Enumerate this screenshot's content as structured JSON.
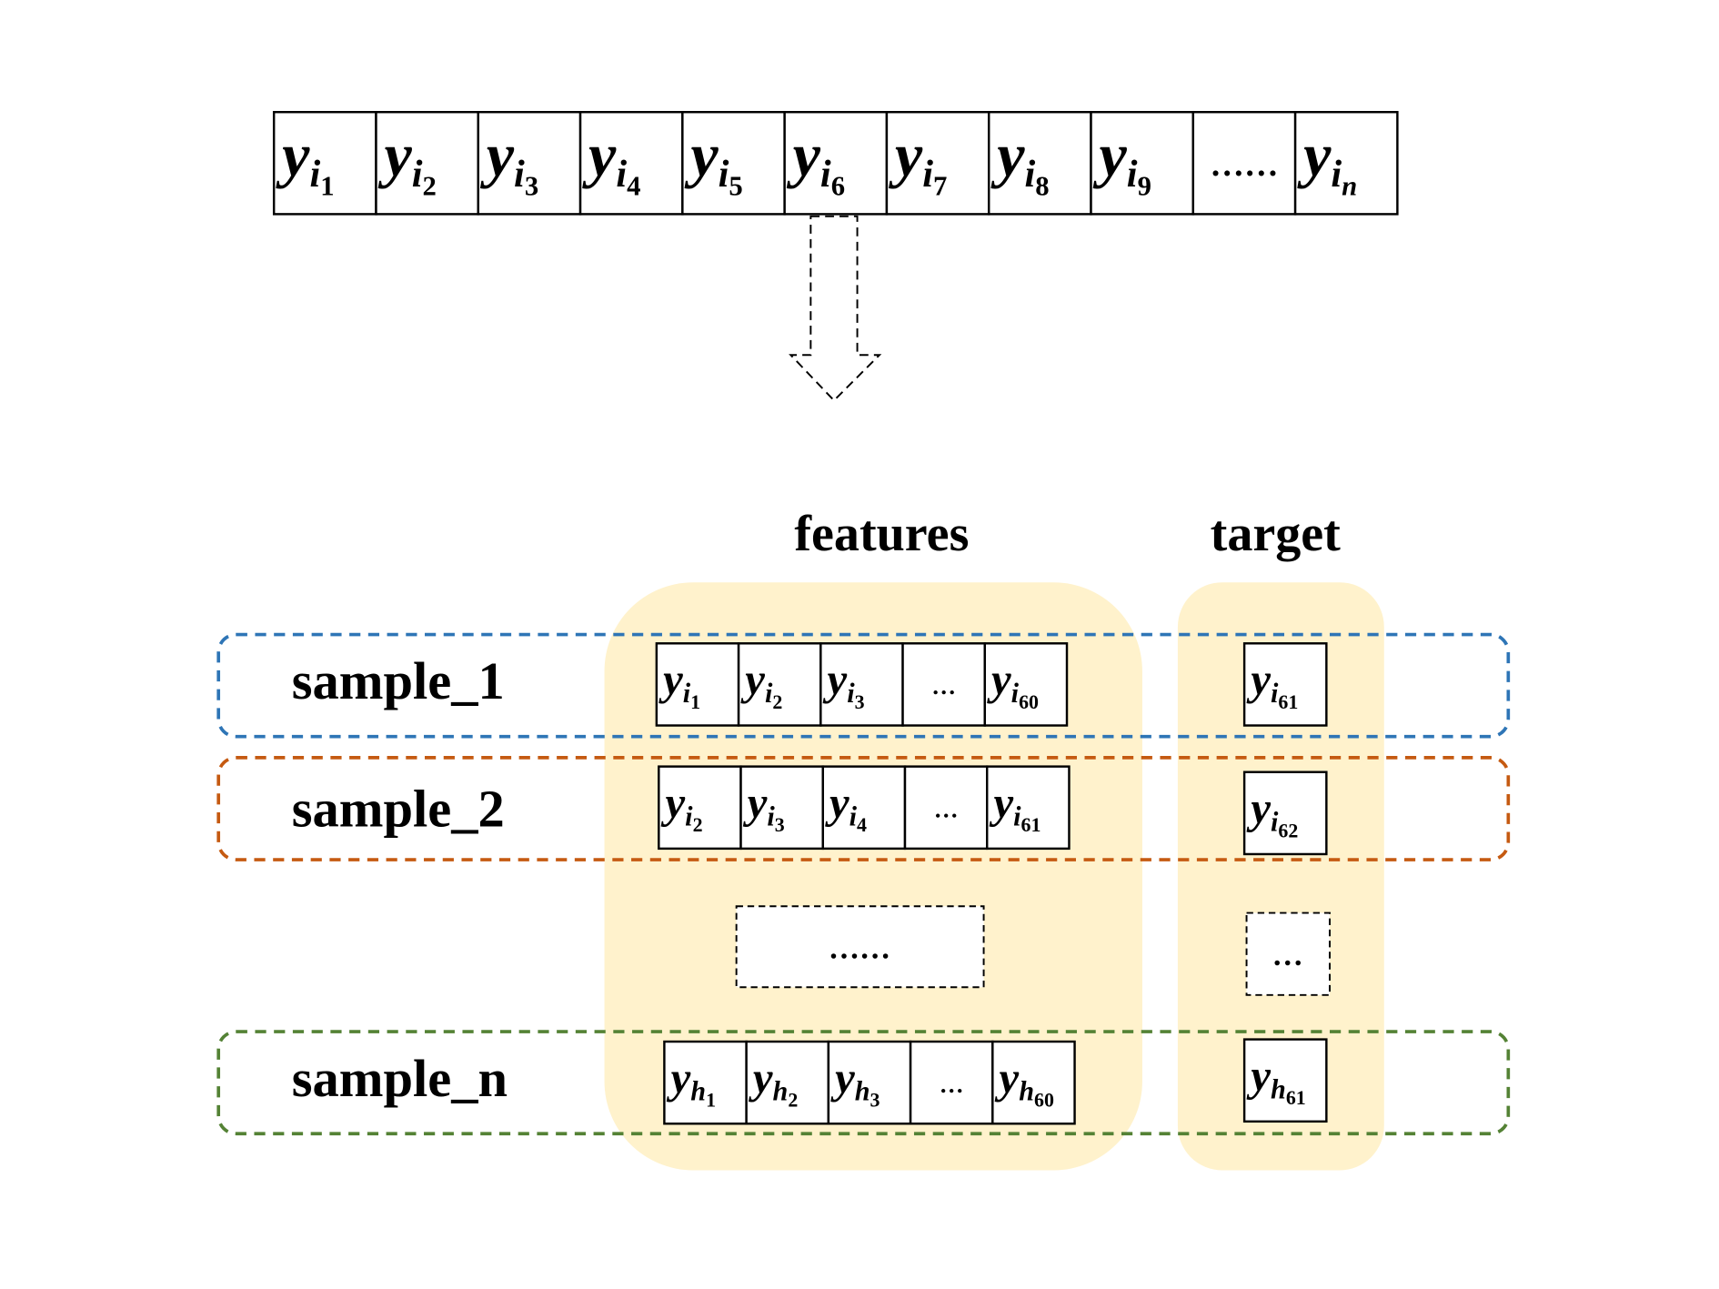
{
  "sequence": [
    {
      "v": "y",
      "s": "i",
      "n": "1"
    },
    {
      "v": "y",
      "s": "i",
      "n": "2"
    },
    {
      "v": "y",
      "s": "i",
      "n": "3"
    },
    {
      "v": "y",
      "s": "i",
      "n": "4"
    },
    {
      "v": "y",
      "s": "i",
      "n": "5"
    },
    {
      "v": "y",
      "s": "i",
      "n": "6"
    },
    {
      "v": "y",
      "s": "i",
      "n": "7"
    },
    {
      "v": "y",
      "s": "i",
      "n": "8"
    },
    {
      "v": "y",
      "s": "i",
      "n": "9"
    },
    {
      "dots": "……"
    },
    {
      "v": "y",
      "s": "i",
      "n": "n",
      "italic_n": true
    }
  ],
  "headers": {
    "features": "features",
    "target": "target"
  },
  "samples": [
    {
      "label": "sample_1",
      "color": "#2e75b6",
      "features": [
        {
          "v": "y",
          "s": "i",
          "n": "1"
        },
        {
          "v": "y",
          "s": "i",
          "n": "2"
        },
        {
          "v": "y",
          "s": "i",
          "n": "3"
        },
        {
          "dots": "…"
        },
        {
          "v": "y",
          "s": "i",
          "n": "60"
        }
      ],
      "target": {
        "v": "y",
        "s": "i",
        "n": "61"
      }
    },
    {
      "label": "sample_2",
      "color": "#c55a11",
      "features": [
        {
          "v": "y",
          "s": "i",
          "n": "2"
        },
        {
          "v": "y",
          "s": "i",
          "n": "3"
        },
        {
          "v": "y",
          "s": "i",
          "n": "4"
        },
        {
          "dots": "…"
        },
        {
          "v": "y",
          "s": "i",
          "n": "61"
        }
      ],
      "target": {
        "v": "y",
        "s": "i",
        "n": "62"
      }
    },
    {
      "label": "sample_n",
      "color": "#548235",
      "features": [
        {
          "v": "y",
          "s": "h",
          "n": "1"
        },
        {
          "v": "y",
          "s": "h",
          "n": "2"
        },
        {
          "v": "y",
          "s": "h",
          "n": "3"
        },
        {
          "dots": "…"
        },
        {
          "v": "y",
          "s": "h",
          "n": "60"
        }
      ],
      "target": {
        "v": "y",
        "s": "h",
        "n": "61"
      }
    }
  ],
  "ellipsis": {
    "features": "……",
    "target": "…"
  },
  "colors": {
    "highlight": "#fff2cc",
    "blue": "#2e75b6",
    "orange": "#c55a11",
    "green": "#548235"
  }
}
